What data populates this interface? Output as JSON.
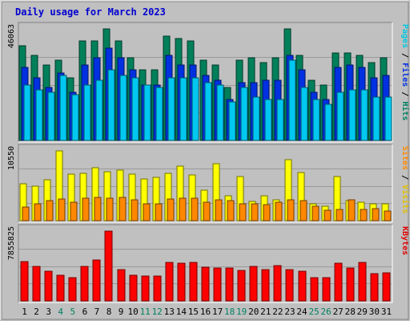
{
  "chart_data": {
    "type": "bar",
    "title": "Daily usage for March 2023",
    "categories": [
      "1",
      "2",
      "3",
      "4",
      "5",
      "6",
      "7",
      "8",
      "9",
      "10",
      "11",
      "12",
      "13",
      "14",
      "15",
      "16",
      "17",
      "18",
      "19",
      "20",
      "21",
      "22",
      "23",
      "24",
      "25",
      "26",
      "27",
      "28",
      "29",
      "30",
      "31"
    ],
    "weekend_days": [
      "4",
      "5",
      "11",
      "12",
      "18",
      "19",
      "25",
      "26"
    ],
    "panels": [
      {
        "id": "hits",
        "max_label": "46063",
        "ylim": [
          0,
          46063
        ],
        "axis_labels": [
          {
            "text": "Pages",
            "color": "#00c8e0"
          },
          {
            "text": " / ",
            "color": "#000000"
          },
          {
            "text": "Files",
            "color": "#0030e0"
          },
          {
            "text": " / ",
            "color": "#000000"
          },
          {
            "text": "Hits",
            "color": "#008060"
          }
        ],
        "series": [
          {
            "name": "Hits",
            "color": "#00805a",
            "values": [
              39000,
              35000,
              31000,
              33000,
              26000,
              41000,
              41000,
              46000,
              41000,
              34000,
              29000,
              29000,
              43000,
              42000,
              41000,
              33000,
              31000,
              22000,
              33000,
              34000,
              32000,
              34000,
              46000,
              35000,
              25000,
              23000,
              36000,
              36000,
              35000,
              32000,
              34000
            ]
          },
          {
            "name": "Files",
            "color": "#0030e0",
            "values": [
              30000,
              26000,
              22000,
              28000,
              20000,
              31000,
              34000,
              38000,
              34000,
              29000,
              23000,
              23000,
              35000,
              31000,
              31000,
              27000,
              25000,
              17000,
              24000,
              24000,
              25000,
              25000,
              35000,
              29000,
              20000,
              17000,
              30000,
              31000,
              30000,
              26000,
              27000
            ]
          },
          {
            "name": "Pages",
            "color": "#00c8f0",
            "values": [
              23000,
              21000,
              20000,
              27000,
              19000,
              23000,
              25000,
              29000,
              27000,
              26000,
              23000,
              22000,
              26000,
              26000,
              26000,
              24000,
              23000,
              16000,
              22000,
              18000,
              17000,
              17000,
              33000,
              22000,
              17000,
              15000,
              20000,
              21000,
              21000,
              18000,
              18000
            ]
          }
        ]
      },
      {
        "id": "visits",
        "max_label": "10550",
        "ylim": [
          0,
          10550
        ],
        "axis_labels": [
          {
            "text": "Sites",
            "color": "#ff8800"
          },
          {
            "text": " / ",
            "color": "#000000"
          },
          {
            "text": "Visits",
            "color": "#e0c000"
          }
        ],
        "series": [
          {
            "name": "Visits",
            "color": "#ffff00",
            "values": [
              5600,
              5200,
              6200,
              10550,
              7000,
              7200,
              8000,
              7400,
              7700,
              7000,
              6300,
              6600,
              7200,
              8200,
              6900,
              4600,
              8600,
              3700,
              6700,
              2900,
              3700,
              3200,
              9200,
              7300,
              2600,
              2200,
              6700,
              3000,
              2800,
              2600,
              2600
            ]
          },
          {
            "name": "Sites",
            "color": "#ff8800",
            "values": [
              2100,
              2600,
              3000,
              3300,
              2800,
              3400,
              3500,
              3400,
              3500,
              3200,
              2500,
              2600,
              3300,
              3400,
              3400,
              2800,
              3100,
              3000,
              2500,
              2600,
              2400,
              2800,
              3100,
              3000,
              2200,
              1600,
              1700,
              3200,
              1700,
              1800,
              1500
            ]
          }
        ]
      },
      {
        "id": "kbytes",
        "max_label": "7855825",
        "ylim": [
          0,
          7855825
        ],
        "axis_labels": [
          {
            "text": "KBytes",
            "color": "#e00000"
          }
        ],
        "series": [
          {
            "name": "KBytes",
            "color": "#ff0000",
            "values": [
              4400000,
              3900000,
              3300000,
              2900000,
              2600000,
              3900000,
              4600000,
              7855825,
              3500000,
              2900000,
              2800000,
              2800000,
              4300000,
              4200000,
              4300000,
              3800000,
              3700000,
              3700000,
              3400000,
              3900000,
              3500000,
              4000000,
              3500000,
              3300000,
              2600000,
              2600000,
              4200000,
              3700000,
              4300000,
              3100000,
              3200000
            ]
          }
        ]
      }
    ],
    "label_colors": {
      "weekday": "#000000",
      "weekend": "#008060"
    },
    "title_color": "#0000d0"
  }
}
